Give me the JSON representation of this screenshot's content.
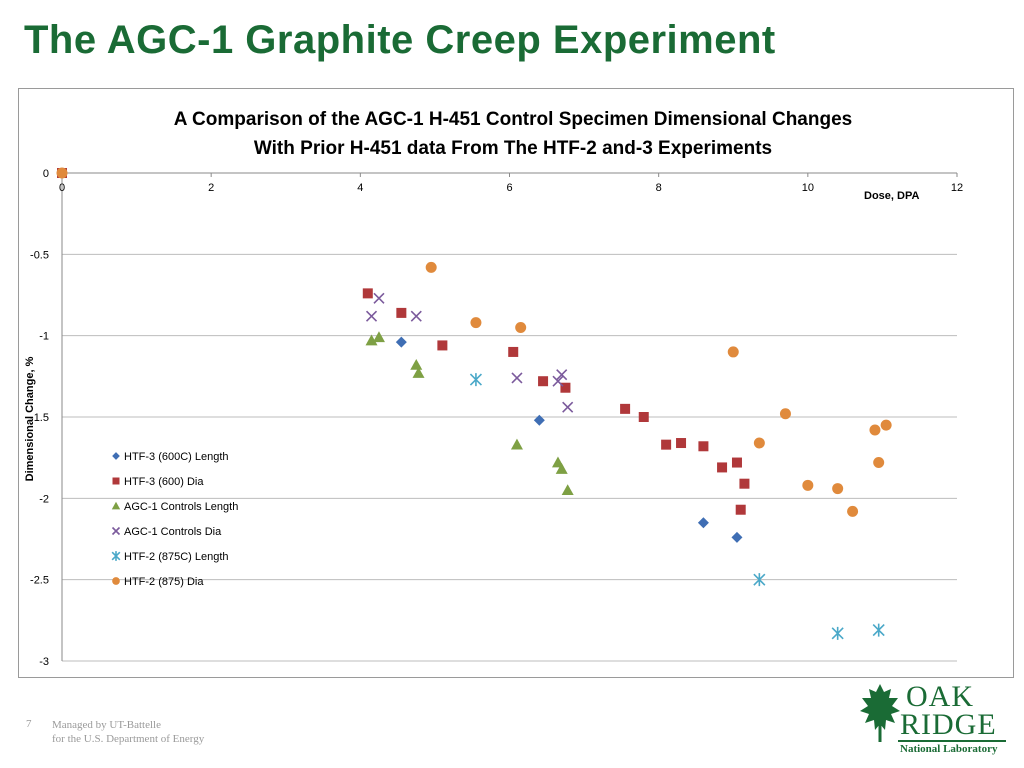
{
  "slide": {
    "title": "The AGC-1 Graphite Creep Experiment",
    "page_number": "7",
    "footer_line1": "Managed by UT-Battelle",
    "footer_line2": "for the U.S. Department of Energy"
  },
  "logo": {
    "line1": "OAK",
    "line2": "RIDGE",
    "line3": "National Laboratory",
    "icon": "oak-leaf-icon",
    "color": "#1a6b35"
  },
  "chart_data": {
    "type": "scatter",
    "title_line1": "A Comparison of the AGC-1 H-451 Control Specimen Dimensional Changes",
    "title_line2": "With Prior H-451 data From The HTF-2 and-3 Experiments",
    "xlabel": "Dose, DPA",
    "ylabel": "Dimensional Change, %",
    "xlim": [
      0,
      12
    ],
    "ylim": [
      -3,
      0
    ],
    "x_ticks": [
      0,
      2,
      4,
      6,
      8,
      10,
      12
    ],
    "y_ticks": [
      0,
      -0.5,
      -1,
      -1.5,
      -2,
      -2.5,
      -3
    ],
    "x_tick_labels": [
      "0",
      "2",
      "4",
      "6",
      "8",
      "10",
      "12"
    ],
    "y_tick_labels": [
      "0",
      "-0.5",
      "-1",
      "-1.5",
      "-2",
      "-2.5",
      "-3"
    ],
    "grid": "horizontal",
    "legend_position": "left",
    "series": [
      {
        "name": "HTF-3 (600C) Length",
        "marker": "diamond",
        "color": "#3f6eb4",
        "points": [
          [
            0,
            0
          ],
          [
            4.55,
            -1.04
          ],
          [
            6.4,
            -1.52
          ],
          [
            8.6,
            -2.15
          ],
          [
            9.05,
            -2.24
          ]
        ]
      },
      {
        "name": "HTF-3 (600) Dia",
        "marker": "square",
        "color": "#b0383a",
        "points": [
          [
            0,
            0
          ],
          [
            4.1,
            -0.74
          ],
          [
            4.55,
            -0.86
          ],
          [
            5.1,
            -1.06
          ],
          [
            6.05,
            -1.1
          ],
          [
            6.45,
            -1.28
          ],
          [
            6.75,
            -1.32
          ],
          [
            7.55,
            -1.45
          ],
          [
            7.8,
            -1.5
          ],
          [
            8.1,
            -1.67
          ],
          [
            8.3,
            -1.66
          ],
          [
            8.6,
            -1.68
          ],
          [
            8.85,
            -1.81
          ],
          [
            9.05,
            -1.78
          ],
          [
            9.15,
            -1.91
          ],
          [
            9.1,
            -2.07
          ]
        ]
      },
      {
        "name": "AGC-1 Controls Length",
        "marker": "triangle",
        "color": "#7ea044",
        "points": [
          [
            4.15,
            -1.03
          ],
          [
            4.25,
            -1.01
          ],
          [
            4.75,
            -1.18
          ],
          [
            4.78,
            -1.23
          ],
          [
            6.1,
            -1.67
          ],
          [
            6.65,
            -1.78
          ],
          [
            6.7,
            -1.82
          ],
          [
            6.78,
            -1.95
          ]
        ]
      },
      {
        "name": "AGC-1 Controls Dia",
        "marker": "x",
        "color": "#7b5a9c",
        "points": [
          [
            4.15,
            -0.88
          ],
          [
            4.25,
            -0.77
          ],
          [
            4.75,
            -0.88
          ],
          [
            6.1,
            -1.26
          ],
          [
            6.65,
            -1.28
          ],
          [
            6.7,
            -1.24
          ],
          [
            6.78,
            -1.44
          ]
        ]
      },
      {
        "name": "HTF-2 (875C) Length",
        "marker": "asterisk",
        "color": "#4aa8c8",
        "points": [
          [
            5.55,
            -1.27
          ],
          [
            9.35,
            -2.5
          ],
          [
            10.4,
            -2.83
          ],
          [
            10.95,
            -2.81
          ]
        ]
      },
      {
        "name": "HTF-2 (875) Dia",
        "marker": "circle",
        "color": "#e08a3c",
        "points": [
          [
            0,
            0
          ],
          [
            4.95,
            -0.58
          ],
          [
            5.55,
            -0.92
          ],
          [
            6.15,
            -0.95
          ],
          [
            9.0,
            -1.1
          ],
          [
            9.35,
            -1.66
          ],
          [
            9.7,
            -1.48
          ],
          [
            10.0,
            -1.92
          ],
          [
            10.4,
            -1.94
          ],
          [
            10.6,
            -2.08
          ],
          [
            10.9,
            -1.58
          ],
          [
            10.95,
            -1.78
          ],
          [
            11.05,
            -1.55
          ]
        ]
      }
    ]
  }
}
